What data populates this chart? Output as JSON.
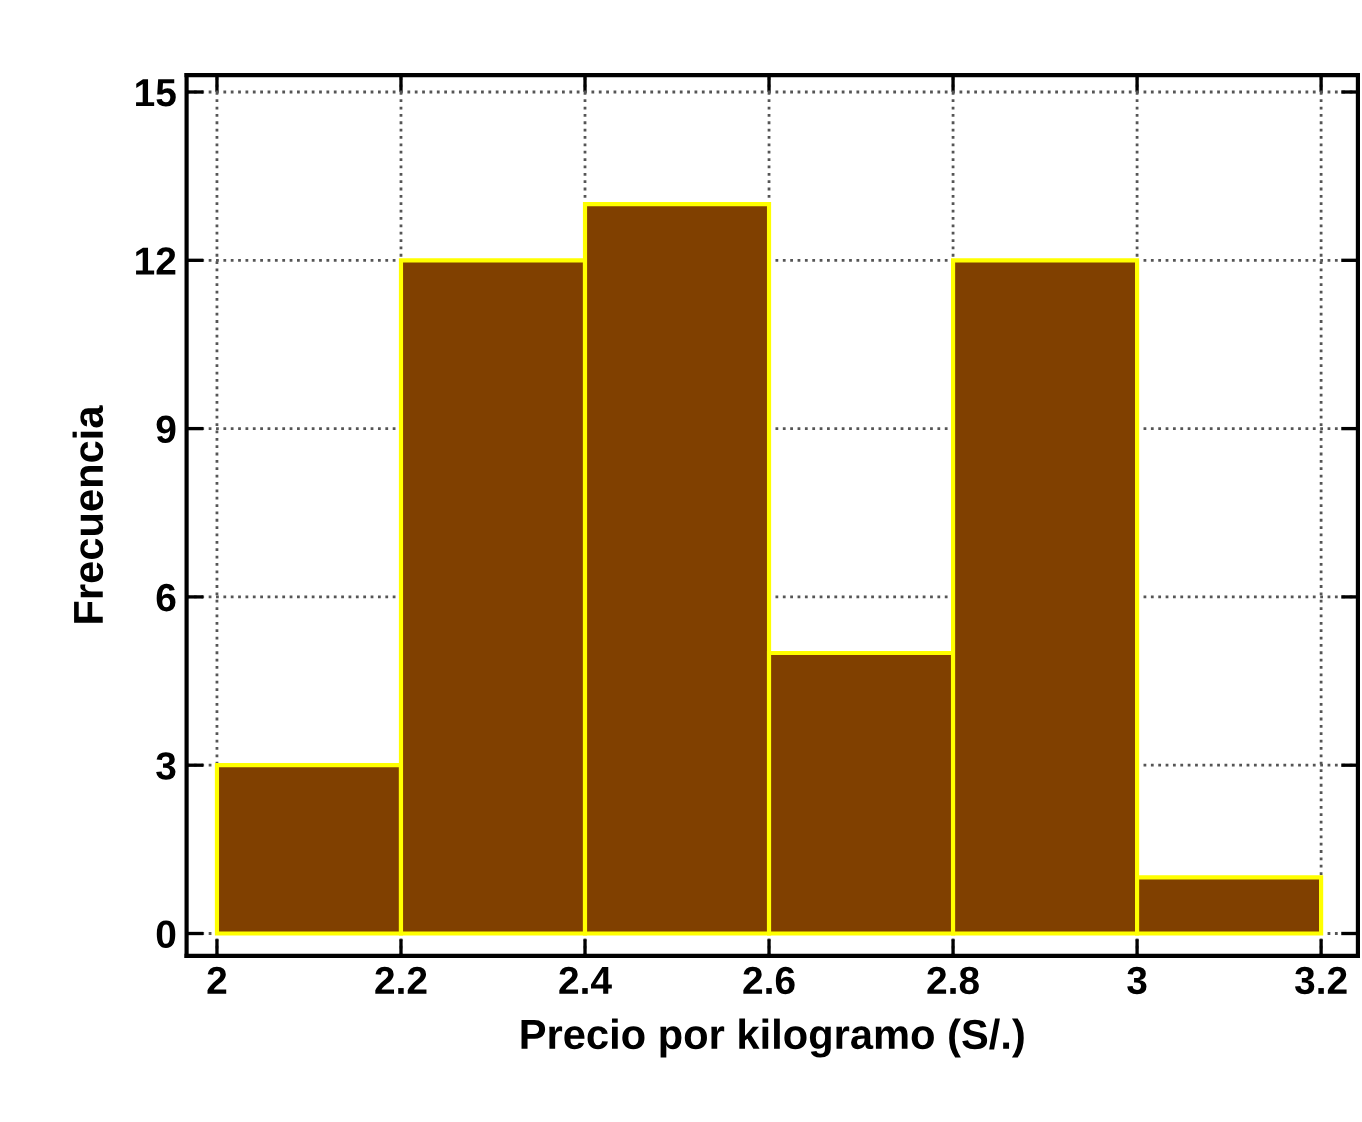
{
  "chart_data": {
    "type": "histogram",
    "xlabel": "Precio por kilogramo (S/.)",
    "ylabel": "Frecuencia",
    "bins": [
      2,
      2.2,
      2.4,
      2.6,
      2.8,
      3,
      3.2
    ],
    "values": [
      3,
      12,
      13,
      5,
      12,
      1
    ],
    "color": "#804000",
    "xlim": [
      1.967,
      3.24
    ],
    "ylim": [
      -0.4,
      15.3
    ],
    "xticks": [
      2,
      2.2,
      2.4,
      2.6,
      2.8,
      3,
      3.2
    ],
    "yticks": [
      0,
      3,
      6,
      9,
      12,
      15
    ],
    "grid": true
  }
}
